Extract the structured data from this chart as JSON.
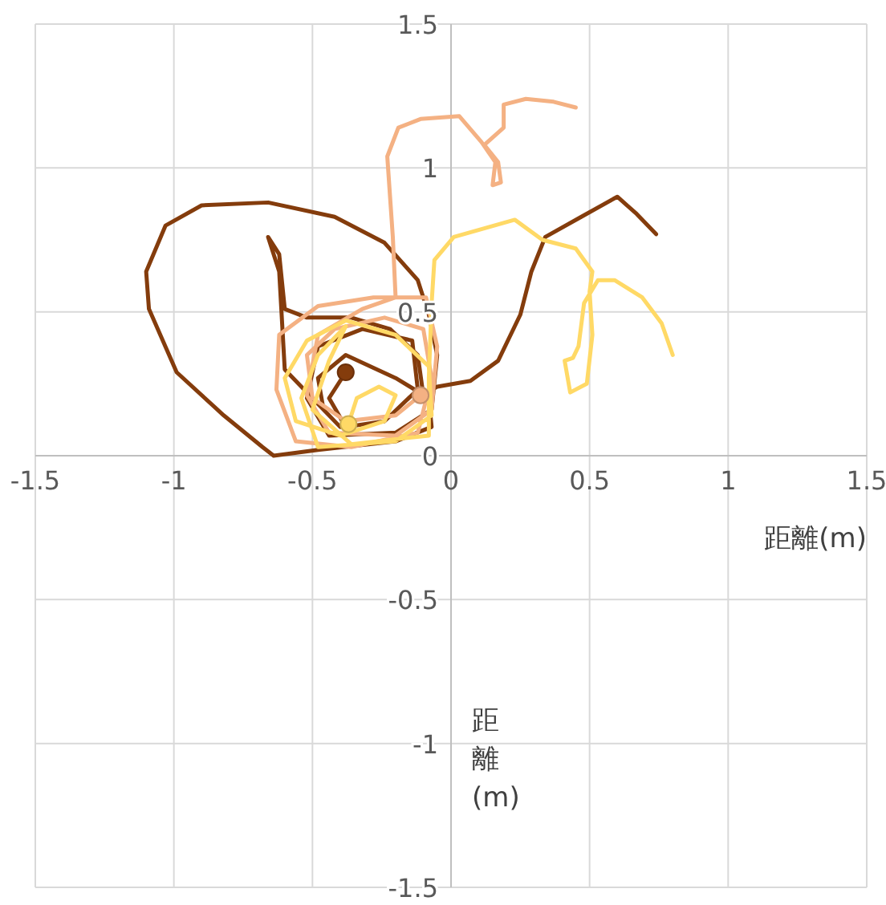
{
  "chart_data": {
    "type": "line",
    "xlabel": "距離(m)",
    "ylabel": "距離(m)",
    "xlim": [
      -1.5,
      1.5
    ],
    "ylim": [
      -1.5,
      1.5
    ],
    "xticks": [
      -1.5,
      -1,
      -0.5,
      0,
      0.5,
      1,
      1.5
    ],
    "yticks": [
      -1.5,
      -1,
      -0.5,
      0,
      0.5,
      1,
      1.5
    ],
    "grid": true,
    "marker": "none",
    "line_style": "solid",
    "series": [
      {
        "color": "#843c0c",
        "x": [
          -0.38,
          -0.44,
          -0.38,
          -0.24,
          -0.12,
          -0.14,
          -0.32,
          -0.48,
          -0.52,
          -0.44,
          -0.2,
          -0.07,
          -0.05,
          -0.08,
          -0.12,
          -0.24,
          -0.42,
          -0.66,
          -0.9,
          -1.03,
          -1.1,
          -1.09,
          -0.99,
          -0.82,
          -0.68,
          -0.64,
          -0.48,
          -0.2,
          -0.07,
          -0.08,
          -0.2,
          -0.38,
          -0.48,
          -0.46,
          -0.4,
          -0.6,
          -0.62,
          -0.66,
          -0.62,
          -0.6,
          -0.52,
          -0.36,
          -0.22,
          -0.12,
          -0.1,
          -0.05,
          0.07,
          0.17,
          0.25,
          0.29,
          0.34,
          0.47,
          0.6,
          0.67,
          0.74
        ],
        "values": [
          0.29,
          0.2,
          0.1,
          0.12,
          0.23,
          0.4,
          0.44,
          0.38,
          0.2,
          0.07,
          0.08,
          0.16,
          0.35,
          0.49,
          0.61,
          0.74,
          0.83,
          0.88,
          0.87,
          0.8,
          0.64,
          0.51,
          0.29,
          0.14,
          0.03,
          0,
          0.02,
          0.05,
          0.1,
          0.2,
          0.27,
          0.35,
          0.27,
          0.16,
          0.1,
          0.3,
          0.64,
          0.76,
          0.7,
          0.51,
          0.48,
          0.48,
          0.44,
          0.35,
          0.21,
          0.24,
          0.26,
          0.33,
          0.49,
          0.64,
          0.76,
          0.83,
          0.9,
          0.84,
          0.77
        ]
      },
      {
        "color": "#f4b183",
        "x": [
          -0.11,
          -0.2,
          -0.38,
          -0.5,
          -0.52,
          -0.42,
          -0.24,
          -0.1,
          -0.07,
          -0.12,
          -0.36,
          -0.56,
          -0.63,
          -0.62,
          -0.48,
          -0.28,
          -0.09,
          -0.05,
          -0.07,
          -0.2,
          -0.44,
          -0.52,
          -0.48,
          -0.32,
          -0.2,
          -0.21,
          -0.23,
          -0.19,
          -0.11,
          0.03,
          0.11,
          0.16,
          0.15,
          0.18,
          0.17,
          0.12,
          0.19,
          0.19,
          0.27,
          0.37,
          0.45
        ],
        "values": [
          0.21,
          0.14,
          0.12,
          0.2,
          0.35,
          0.44,
          0.48,
          0.44,
          0.27,
          0.08,
          0.03,
          0.05,
          0.23,
          0.42,
          0.52,
          0.55,
          0.55,
          0.38,
          0.16,
          0.07,
          0.08,
          0.21,
          0.42,
          0.51,
          0.55,
          0.76,
          1.04,
          1.14,
          1.17,
          1.18,
          1.09,
          1.02,
          0.94,
          0.95,
          1.02,
          1.08,
          1.14,
          1.22,
          1.24,
          1.23,
          1.21
        ]
      },
      {
        "color": "#ffd966",
        "x": [
          -0.37,
          -0.34,
          -0.26,
          -0.2,
          -0.24,
          -0.4,
          -0.56,
          -0.6,
          -0.52,
          -0.38,
          -0.2,
          -0.08,
          -0.07,
          -0.2,
          -0.48,
          -0.54,
          -0.48,
          -0.38,
          -0.44,
          -0.5,
          -0.36,
          -0.08,
          -0.08,
          -0.07,
          -0.06,
          0.01,
          0.23,
          0.33,
          0.45,
          0.51,
          0.5,
          0.51,
          0.49,
          0.43,
          0.41,
          0.44,
          0.46,
          0.48,
          0.53,
          0.59,
          0.69,
          0.76,
          0.8
        ],
        "values": [
          0.11,
          0.2,
          0.24,
          0.21,
          0.12,
          0.07,
          0.12,
          0.27,
          0.4,
          0.47,
          0.42,
          0.31,
          0.14,
          0.05,
          0.03,
          0.2,
          0.35,
          0.45,
          0.33,
          0.16,
          0.04,
          0.07,
          0.27,
          0.53,
          0.68,
          0.76,
          0.82,
          0.75,
          0.72,
          0.64,
          0.57,
          0.42,
          0.25,
          0.22,
          0.33,
          0.34,
          0.38,
          0.53,
          0.61,
          0.61,
          0.55,
          0.46,
          0.35
        ]
      },
      {
        "type": "scatter",
        "marker": "circle",
        "color": "#843c0c",
        "x": [
          -0.38
        ],
        "values": [
          0.29
        ]
      },
      {
        "type": "scatter",
        "marker": "circle",
        "color": "#f4b183",
        "x": [
          -0.11
        ],
        "values": [
          0.21
        ]
      },
      {
        "type": "scatter",
        "marker": "circle",
        "color": "#ffd966",
        "x": [
          -0.37
        ],
        "values": [
          0.11
        ]
      }
    ]
  }
}
